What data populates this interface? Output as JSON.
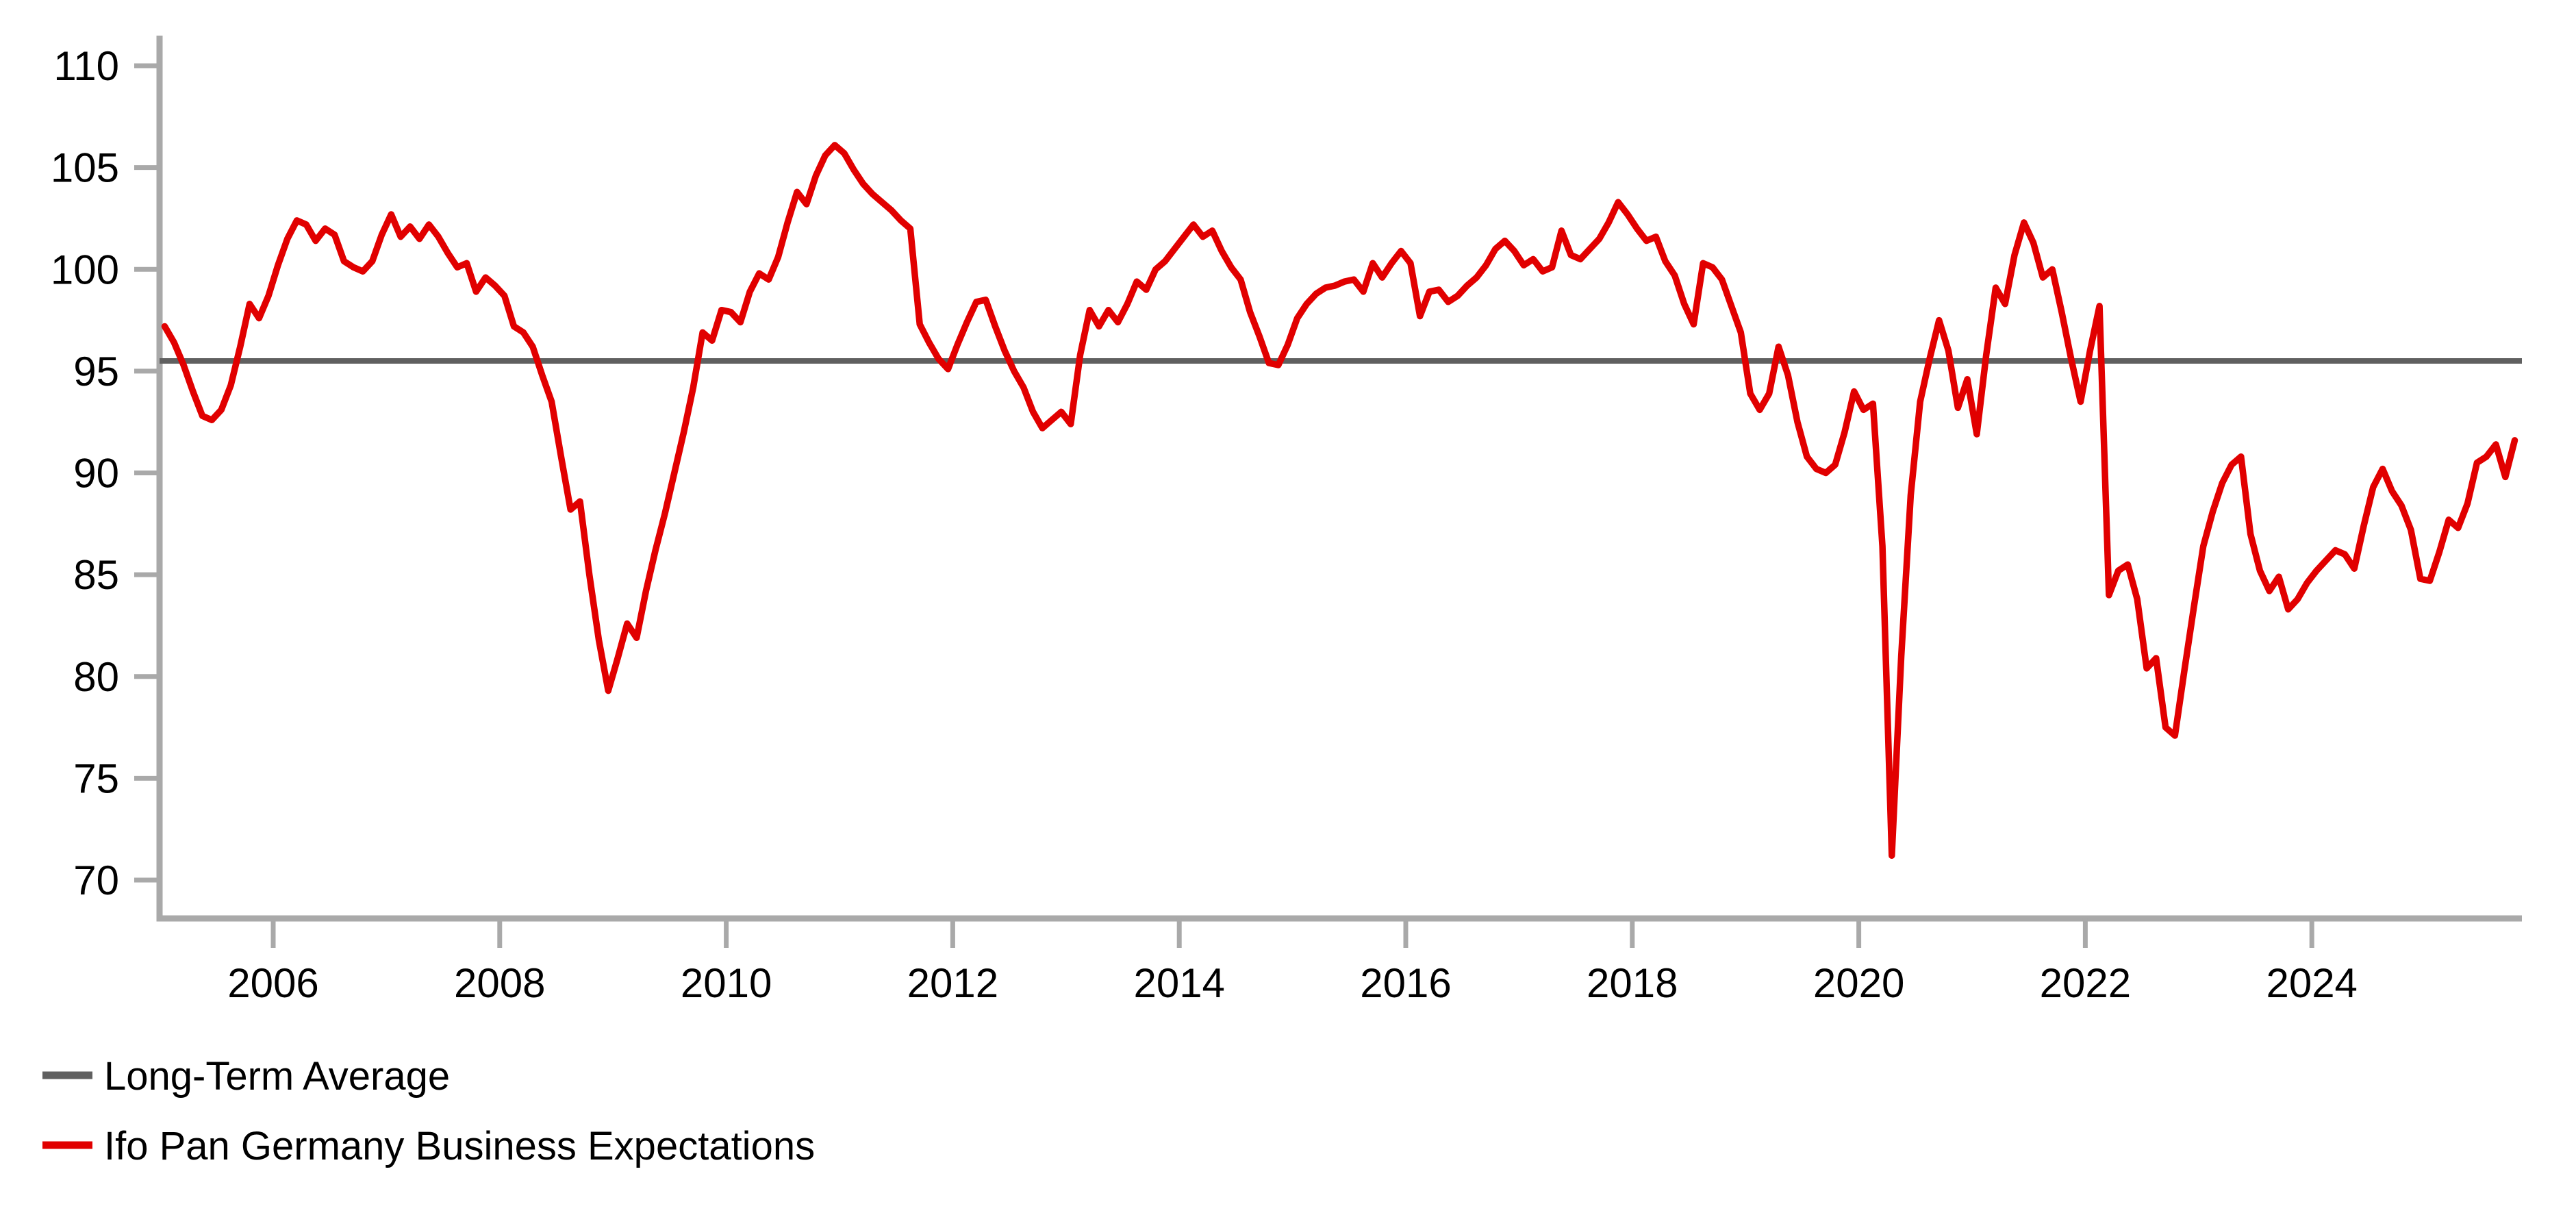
{
  "chart_data": {
    "type": "line",
    "title": "",
    "xlabel": "",
    "ylabel": "",
    "grid": false,
    "background": "#ffffff",
    "axis_color": "#a9a9a9",
    "tick_label_color": "#000000",
    "x_axis": {
      "tick_years": [
        2006,
        2008,
        2010,
        2012,
        2014,
        2016,
        2018,
        2020,
        2022,
        2024
      ],
      "start_year": 2005.0,
      "end_year": 2025.84
    },
    "y_axis": {
      "ticks": [
        70,
        75,
        80,
        85,
        90,
        95,
        100,
        105,
        110
      ],
      "min": 68.1,
      "max": 111.5
    },
    "average_line": {
      "label": "Long-Term Average",
      "value": 95.5,
      "color": "#606060"
    },
    "series": [
      {
        "name": "Ifo Pan Germany Business Expectations",
        "color": "#e10000",
        "frequency": "monthly",
        "start_year": 2005,
        "start_month": 1,
        "values": [
          97.2,
          96.4,
          95.3,
          94.0,
          92.8,
          92.6,
          93.1,
          94.3,
          96.2,
          98.3,
          97.6,
          98.7,
          100.2,
          101.5,
          102.4,
          102.2,
          101.4,
          102.0,
          101.7,
          100.4,
          100.1,
          99.9,
          100.4,
          101.7,
          102.7,
          101.6,
          102.1,
          101.5,
          102.2,
          101.6,
          100.8,
          100.1,
          100.3,
          98.9,
          99.6,
          99.2,
          98.7,
          97.2,
          96.9,
          96.2,
          94.8,
          93.5,
          90.8,
          88.2,
          88.6,
          85.0,
          81.8,
          79.3,
          80.9,
          82.6,
          81.9,
          84.2,
          86.2,
          88.0,
          90.0,
          92.0,
          94.2,
          96.9,
          96.5,
          98.0,
          97.9,
          97.4,
          98.9,
          99.8,
          99.5,
          100.6,
          102.3,
          103.8,
          103.2,
          104.6,
          105.6,
          106.1,
          105.7,
          104.9,
          104.2,
          103.7,
          103.3,
          102.9,
          102.4,
          102.0,
          97.3,
          96.4,
          95.6,
          95.1,
          96.3,
          97.4,
          98.4,
          98.5,
          97.2,
          96.0,
          95.0,
          94.2,
          93.0,
          92.2,
          92.6,
          93.0,
          92.4,
          95.8,
          98.0,
          97.2,
          98.0,
          97.4,
          98.3,
          99.4,
          99.0,
          100.0,
          100.4,
          101.0,
          101.6,
          102.2,
          101.6,
          101.9,
          100.9,
          100.1,
          99.5,
          97.9,
          96.7,
          95.4,
          95.3,
          96.3,
          97.6,
          98.3,
          98.8,
          99.1,
          99.2,
          99.4,
          99.5,
          98.9,
          100.3,
          99.6,
          100.3,
          100.9,
          100.3,
          97.7,
          98.9,
          99.0,
          98.4,
          98.7,
          99.2,
          99.6,
          100.2,
          101.0,
          101.4,
          100.9,
          100.2,
          100.5,
          99.9,
          100.1,
          101.9,
          100.7,
          100.5,
          101.0,
          101.5,
          102.3,
          103.3,
          102.7,
          102.0,
          101.4,
          101.6,
          100.4,
          99.7,
          98.3,
          97.3,
          100.3,
          100.1,
          99.5,
          98.2,
          96.9,
          93.9,
          93.1,
          93.9,
          96.2,
          94.8,
          92.5,
          90.8,
          90.2,
          90.0,
          90.4,
          92.0,
          94.0,
          93.1,
          93.4,
          86.4,
          71.2,
          81.0,
          88.9,
          93.5,
          95.6,
          97.5,
          96.0,
          93.2,
          94.6,
          91.9,
          95.8,
          99.1,
          98.3,
          100.7,
          102.3,
          101.3,
          99.6,
          100.0,
          97.9,
          95.6,
          93.5,
          96.0,
          98.2,
          84.0,
          85.2,
          85.5,
          83.8,
          80.4,
          80.9,
          77.5,
          77.1,
          80.3,
          83.4,
          86.4,
          88.1,
          89.5,
          90.4,
          90.8,
          87.0,
          85.2,
          84.2,
          84.9,
          83.3,
          83.8,
          84.6,
          85.2,
          85.7,
          86.2,
          86.0,
          85.3,
          87.4,
          89.3,
          90.2,
          89.1,
          88.4,
          87.2,
          84.8,
          84.7,
          86.1,
          87.7,
          87.3,
          88.5,
          90.5,
          90.8,
          91.4,
          89.8,
          91.6
        ]
      }
    ],
    "legend_position": "bottom-left"
  },
  "legend": {
    "items": [
      {
        "label": "Long-Term Average",
        "color": "#606060"
      },
      {
        "label": "Ifo Pan Germany Business Expectations",
        "color": "#e10000"
      }
    ]
  }
}
